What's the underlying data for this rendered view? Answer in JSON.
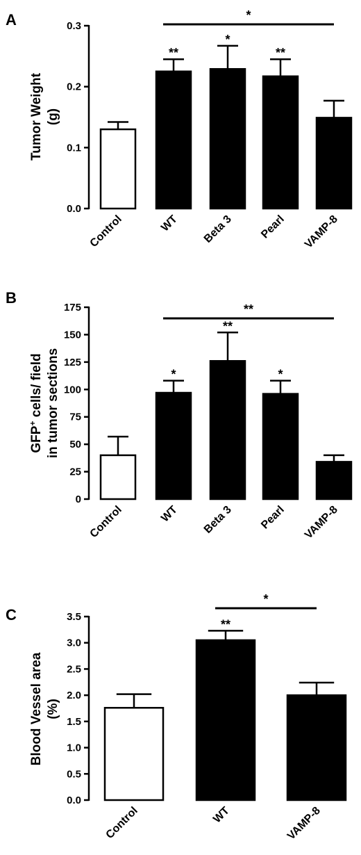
{
  "chart_data": [
    {
      "type": "bar",
      "panel": "A",
      "ylabel_lines": [
        "Tumor Weight",
        "(g)"
      ],
      "categories": [
        "Control",
        "WT",
        "Beta 3",
        "Pearl",
        "VAMP-8"
      ],
      "values": [
        0.13,
        0.225,
        0.229,
        0.217,
        0.149
      ],
      "errors": [
        0.012,
        0.02,
        0.038,
        0.028,
        0.028
      ],
      "fills": [
        "#ffffff",
        "#000000",
        "#000000",
        "#000000",
        "#000000"
      ],
      "significance": [
        "",
        "**",
        "*",
        "**",
        ""
      ],
      "ylim": [
        0,
        0.3
      ],
      "yticks": [
        0,
        0.1,
        0.2,
        0.3
      ],
      "ytick_labels": [
        "0.0",
        "0.1",
        "0.2",
        "0.3"
      ],
      "bracket": {
        "from": 1,
        "to": 4,
        "label": "*"
      }
    },
    {
      "type": "bar",
      "panel": "B",
      "ylabel_lines": [
        "GFP+ cells/ field",
        "in tumor sections"
      ],
      "categories": [
        "Control",
        "WT",
        "Beta 3",
        "Pearl",
        "VAMP-8"
      ],
      "values": [
        40,
        97,
        126,
        96,
        34
      ],
      "errors": [
        17,
        11,
        26,
        12,
        6
      ],
      "fills": [
        "#ffffff",
        "#000000",
        "#000000",
        "#000000",
        "#000000"
      ],
      "significance": [
        "",
        "*",
        "**",
        "*",
        ""
      ],
      "ylim": [
        0,
        175
      ],
      "yticks": [
        0,
        25,
        50,
        75,
        100,
        125,
        150,
        175
      ],
      "ytick_labels": [
        "0",
        "25",
        "50",
        "75",
        "100",
        "125",
        "150",
        "175"
      ],
      "bracket": {
        "from": 1,
        "to": 4,
        "label": "**"
      }
    },
    {
      "type": "bar",
      "panel": "C",
      "ylabel_lines": [
        "Blood Vessel area",
        "(%)"
      ],
      "categories": [
        "Control",
        "WT",
        "VAMP-8"
      ],
      "values": [
        1.76,
        3.05,
        2.0
      ],
      "errors": [
        0.26,
        0.18,
        0.24
      ],
      "fills": [
        "#ffffff",
        "#000000",
        "#000000"
      ],
      "significance": [
        "",
        "**",
        ""
      ],
      "ylim": [
        0,
        3.5
      ],
      "yticks": [
        0,
        0.5,
        1.0,
        1.5,
        2.0,
        2.5,
        3.0,
        3.5
      ],
      "ytick_labels": [
        "0.0",
        "0.5",
        "1.0",
        "1.5",
        "2.0",
        "2.5",
        "3.0",
        "3.5"
      ],
      "bracket": {
        "from": 1,
        "to": 2,
        "label": "*"
      }
    }
  ]
}
